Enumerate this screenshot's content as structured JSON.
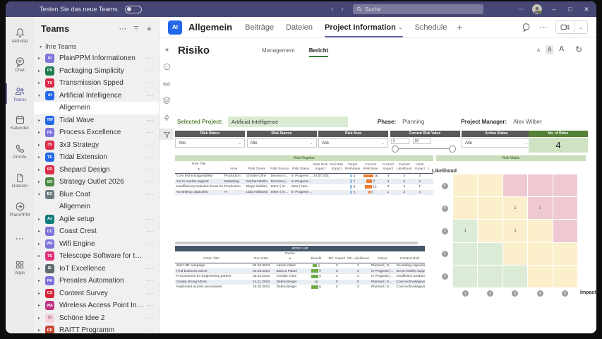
{
  "icons": {
    "more": "⋯",
    "add": "+",
    "chevron_down": "⌄",
    "caret_open": "▾",
    "caret_closed": "▸",
    "back": "‹",
    "forward": "›",
    "minimize": "–",
    "maximize": "□",
    "close": "✕",
    "refresh": "↻",
    "sort_asc": "▲"
  },
  "titlebar": {
    "promo": "Testen Sie das neue Teams.",
    "search_placeholder": "Suche"
  },
  "rail": {
    "items": [
      {
        "key": "aktivitaet",
        "label": "Aktivität",
        "icon": "bell-icon",
        "active": false
      },
      {
        "key": "chat",
        "label": "Chat",
        "icon": "chat-icon",
        "active": false
      },
      {
        "key": "teams",
        "label": "Teams",
        "icon": "teams-icon",
        "active": true
      },
      {
        "key": "kalender",
        "label": "Kalender",
        "icon": "calendar-icon",
        "active": false
      },
      {
        "key": "anrufe",
        "label": "Anrufe",
        "icon": "phone-icon",
        "active": false
      },
      {
        "key": "dateien",
        "label": "Dateien",
        "icon": "file-icon",
        "active": false
      },
      {
        "key": "plainppm",
        "label": "PlainPPM",
        "icon": "plainppm-icon",
        "active": false
      },
      {
        "key": "more",
        "label": "",
        "icon": "more-icon",
        "active": false
      },
      {
        "key": "apps",
        "label": "Apps",
        "icon": "apps-icon",
        "active": false
      }
    ]
  },
  "sidebar": {
    "title": "Teams",
    "section_label": "Ihre Teams",
    "teams": [
      {
        "initials": "PI",
        "name": "PlainPPM Informationen",
        "color": "#7D73DC"
      },
      {
        "initials": "PS",
        "name": "Packaging Simplicity",
        "color": "#1E7B4D"
      },
      {
        "initials": "TS",
        "name": "Transmission Spped",
        "color": "#DC2B47"
      },
      {
        "initials": "AI",
        "name": "Artificial Intelligence",
        "color": "#2368E8",
        "expanded": true,
        "channels": [
          {
            "name": "Allgemein",
            "selected": true
          }
        ]
      },
      {
        "initials": "TW",
        "name": "Tidal Wave",
        "color": "#2368E8"
      },
      {
        "initials": "PE",
        "name": "Process Excellence",
        "color": "#7D73DC"
      },
      {
        "initials": "3S",
        "name": "3x3 Strategy",
        "color": "#DC2B47"
      },
      {
        "initials": "TE",
        "name": "Tidal Extension",
        "color": "#2368E8"
      },
      {
        "initials": "SD",
        "name": "Shepard Design",
        "color": "#DC2B47"
      },
      {
        "initials": "SO",
        "name": "Strategy Outlet 2026",
        "color": "#4A8B41"
      },
      {
        "initials": "BC",
        "name": "Blue Coat",
        "color": "#6E7B80",
        "expanded": true,
        "channels": [
          {
            "name": "Allgemein",
            "selected": false
          }
        ]
      },
      {
        "initials": "As",
        "name": "Agile setup",
        "color": "#0F7A7A"
      },
      {
        "initials": "CC",
        "name": "Coast Crest",
        "color": "#7D73DC"
      },
      {
        "initials": "WE",
        "name": "Wifi Engine",
        "color": "#7D73DC"
      },
      {
        "initials": "TS",
        "name": "Telescope Software for the Dominion",
        "color": "#E0317B"
      },
      {
        "initials": "IE",
        "name": "IoT Excellence",
        "color": "#5E6A70"
      },
      {
        "initials": "PA",
        "name": "Presales Automation",
        "color": "#7D73DC"
      },
      {
        "initials": "CS",
        "name": "Content Survey",
        "color": "#D6263B"
      },
      {
        "initials": "WA",
        "name": "Wireless Access Point Installation",
        "color": "#BE3480"
      },
      {
        "initials": "SI",
        "name": "Schöne Idee 2",
        "color": "#F2D5DC",
        "text_color": "#9c5668"
      },
      {
        "initials": "RP",
        "name": "RAITT Programm",
        "color": "#C74634"
      }
    ]
  },
  "channel_header": {
    "team_initials": "AI",
    "title": "Allgemein",
    "tabs": [
      {
        "label": "Beiträge"
      },
      {
        "label": "Dateien"
      },
      {
        "label": "Project Information",
        "active": true,
        "dropdown": true
      },
      {
        "label": "Schedule"
      }
    ]
  },
  "report": {
    "title": "Risiko",
    "tabs": [
      {
        "label": "Management"
      },
      {
        "label": "Bericht",
        "active": true
      }
    ],
    "font_buttons": [
      "A",
      "A",
      "A"
    ],
    "selected_project_label": "Selected Project:",
    "selected_project_value": "Artificial Intelligence",
    "phase_label": "Phase:",
    "phase_value": "Planning",
    "pm_label": "Project Manager:",
    "pm_value": "Alex Wilber",
    "filters": [
      {
        "header": "Risk Status",
        "type": "dropdown",
        "value": "Alle"
      },
      {
        "header": "Risk Source",
        "type": "dropdown",
        "value": "Alle"
      },
      {
        "header": "Risk Area",
        "type": "dropdown",
        "value": "Alle"
      },
      {
        "header": "Current Risk Value",
        "type": "range",
        "min": "3",
        "max": "16"
      },
      {
        "header": "Action Status",
        "type": "dropdown",
        "value": "Alle"
      }
    ],
    "no_of_risks": {
      "header": "No. of Risks",
      "value": "4"
    },
    "risk_register": {
      "title": "Risk Register",
      "columns": [
        "Risk Title",
        "Area",
        "Risk Owner",
        "Risk Source",
        "Risk Status",
        "Start Risk Impact",
        "End Risk Impact",
        "Target RiskValue",
        "Current RiskValue",
        "Current Impact",
        "Current Likelihood",
        "Initial Impact",
        "L..."
      ],
      "max_current_value": 16,
      "rows": [
        [
          "Core technololgyvsafety",
          "Production",
          "Christie Cline",
          "Decision |...",
          "In Progress ...",
          "24.07.2023",
          "",
          "4",
          "16",
          "4",
          "4",
          "3",
          ""
        ],
        [
          "Go-to-market support",
          "Marketing",
          "Gerhart Moller",
          "Decision |...",
          "In Progress ...",
          "",
          "",
          "2",
          "9",
          "3",
          "3",
          "2",
          ""
        ],
        [
          "Insufficient production know-hov",
          "Production",
          "Diego Siciliani",
          "Intern | In...",
          "New | Neu...",
          "",
          "",
          "6",
          "12",
          "3",
          "4",
          "1",
          ""
        ],
        [
          "No testing capacities",
          "IT",
          "Lidia Holloway",
          "Intern | In...",
          "In Progress ...",
          "",
          "",
          "5",
          "3",
          "1",
          "3",
          "4",
          ""
        ]
      ]
    },
    "action_list": {
      "title": "Action List",
      "columns": [
        "Action Title",
        "Due Date",
        "Owner",
        "Benefit",
        "Mit. Impact",
        "Mit. Likelihood",
        "Status",
        "Related Risk"
      ],
      "max_benefit": 9,
      "rows": [
        [
          "Start HR campaign",
          "04.10.2023",
          "Adrian Adam",
          "6",
          "3",
          "2",
          "Planned | G...",
          "No testing capacities"
        ],
        [
          "Find business owner",
          "20.03.2024",
          "Bianca Pisani",
          "9",
          "3",
          "3",
          "In Progress |...",
          "Go-to-market support"
        ],
        [
          "Procurement for Engineering partner",
          "30.12.2023",
          "Christie Cline",
          "9",
          "3",
          "3",
          "In Progress |...",
          "Insufficient productio..."
        ],
        [
          "Create strong NDAs",
          "14.11.2023",
          "Debra Berger",
          "0",
          "0",
          "0",
          "Planned | G...",
          "Core technololgyvsafe..."
        ],
        [
          "Implement access procedures",
          "18.10.2023",
          "Debra Berger",
          "9",
          "3",
          "3",
          "Planned | G...",
          "Core technololgyvsafe..."
        ]
      ]
    },
    "risk_matrix": {
      "title": "Risk Matrix",
      "ylabel": "Likelihood",
      "xlabel": "Impact",
      "y_ticks": [
        "5",
        "4",
        "3",
        "2",
        "1"
      ],
      "x_ticks": [
        "1",
        "2",
        "3",
        "4",
        "5"
      ],
      "colors": {
        "g": "#DCEBD5",
        "y": "#FCF0CC",
        "r": "#EFC9D2"
      },
      "cells": [
        [
          "y",
          "y",
          "r",
          "r",
          "r"
        ],
        [
          "y",
          "y",
          "y:1",
          "r:1",
          "r"
        ],
        [
          "g:1",
          "y",
          "y:1",
          "y",
          "r"
        ],
        [
          "g",
          "g",
          "y",
          "y",
          "y"
        ],
        [
          "g",
          "g",
          "g",
          "y",
          "y"
        ]
      ]
    }
  }
}
